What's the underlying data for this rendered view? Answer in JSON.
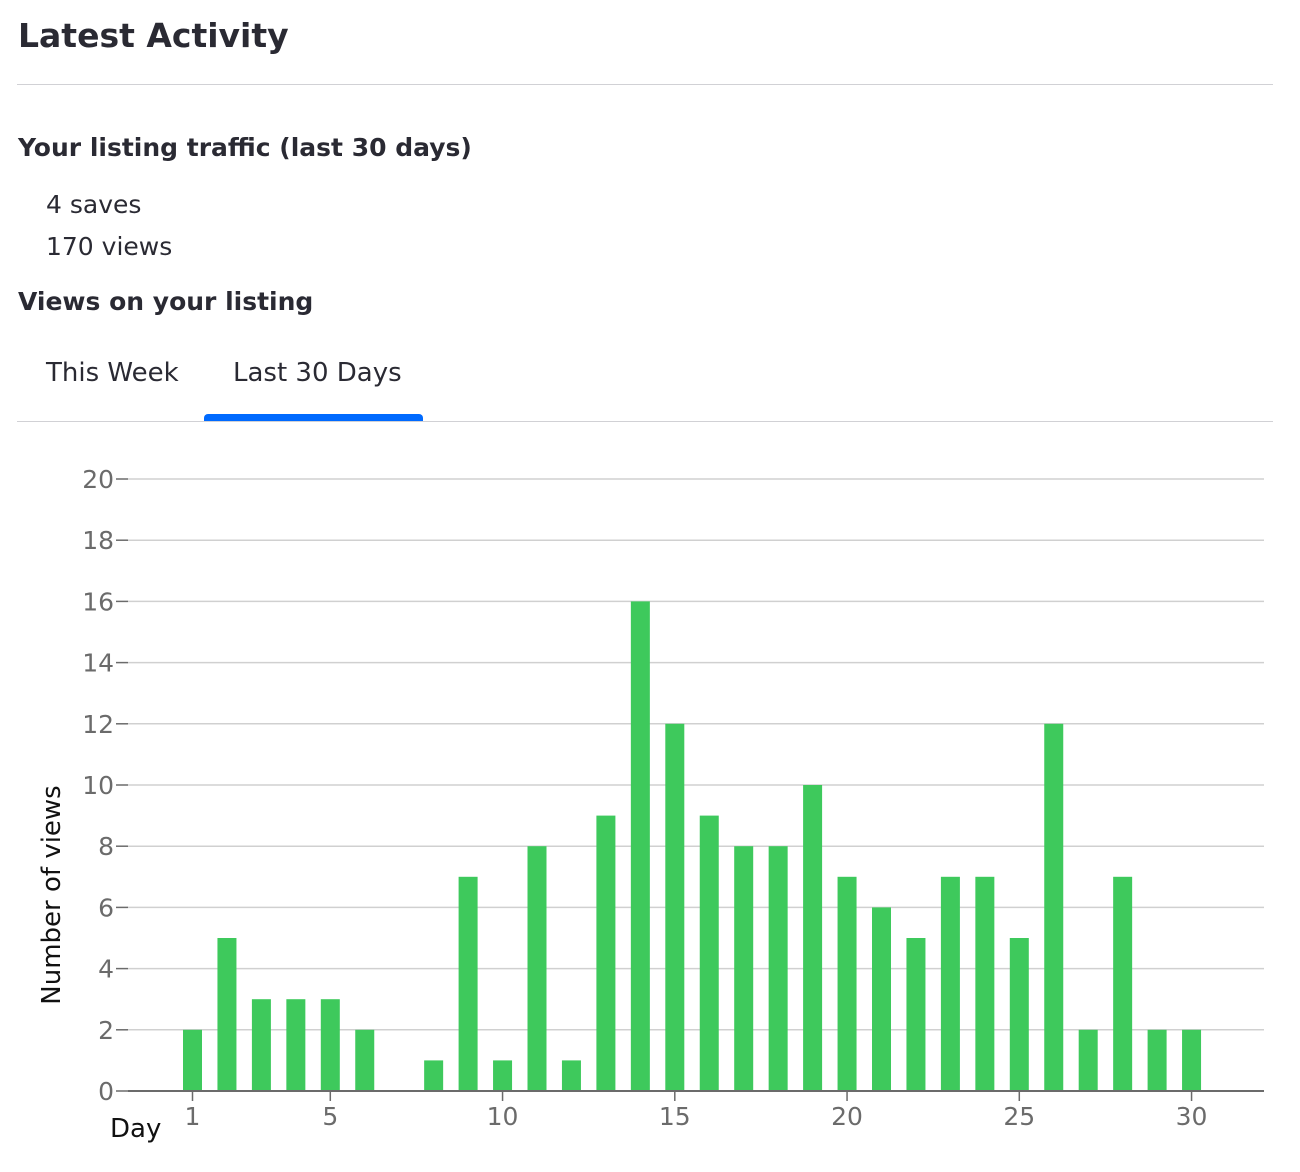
{
  "page": {
    "title": "Latest Activity"
  },
  "traffic": {
    "heading": "Your listing traffic (last 30 days)",
    "saves": "4 saves",
    "views": "170 views"
  },
  "views_section": {
    "heading": "Views on your listing",
    "tabs": [
      {
        "label": "This Week",
        "selected": false
      },
      {
        "label": "Last 30 Days",
        "selected": true
      }
    ]
  },
  "colors": {
    "bar": "#3ec95c",
    "tab_indicator": "#006aff",
    "grid": "#d0d0d0"
  },
  "chart_data": {
    "type": "bar",
    "x": [
      1,
      2,
      3,
      4,
      5,
      6,
      7,
      8,
      9,
      10,
      11,
      12,
      13,
      14,
      15,
      16,
      17,
      18,
      19,
      20,
      21,
      22,
      23,
      24,
      25,
      26,
      27,
      28,
      29,
      30
    ],
    "values": [
      2,
      5,
      3,
      3,
      3,
      2,
      0,
      1,
      7,
      1,
      8,
      1,
      9,
      16,
      12,
      9,
      8,
      8,
      10,
      7,
      6,
      5,
      7,
      7,
      5,
      12,
      2,
      7,
      2,
      2
    ],
    "xticks": [
      "1",
      "5",
      "10",
      "15",
      "20",
      "25",
      "30"
    ],
    "yticks": [
      "0",
      "2",
      "4",
      "6",
      "8",
      "10",
      "12",
      "14",
      "16",
      "18",
      "20"
    ],
    "xlabel": "Day",
    "ylabel": "Number of views",
    "ylim": [
      0,
      20
    ],
    "grid": true
  }
}
